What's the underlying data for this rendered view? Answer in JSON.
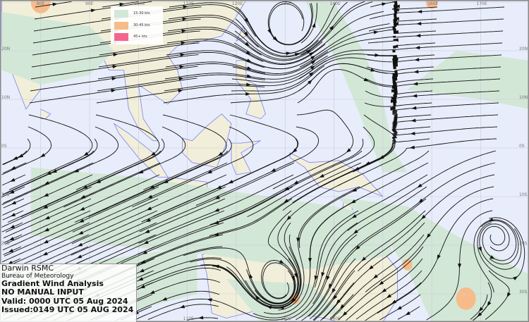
{
  "title_box": {
    "centre": "Darwin RSMC",
    "agency": "Bureau of Meteorology",
    "product": "Gradient Wind Analysis",
    "note": "NO MANUAL INPUT",
    "valid": "Valid:   0000 UTC 05 Aug 2024",
    "issued": "Issued:0149 UTC 05 AUG 2024"
  },
  "legend": [
    {
      "label": "15-30 kts",
      "color": "#d3e7d7"
    },
    {
      "label": "30-45 kts",
      "color": "#f7bb8a"
    },
    {
      "label": "45+ kts",
      "color": "#f4648f"
    }
  ],
  "longitude_labels_top": [
    "80E",
    "90E",
    "100E",
    "110E",
    "120E",
    "130E",
    "140E",
    "160E",
    "170E"
  ],
  "longitude_labels_bottom": [
    "110E",
    "130E",
    "140E"
  ],
  "latitude_labels_left": [
    "20N",
    "10N",
    "0S",
    "10S",
    "20S"
  ],
  "latitude_labels_right": [
    "20N",
    "10N",
    "0S",
    "10S",
    "20S",
    "30S"
  ],
  "colors": {
    "ocean": "#e8edfb",
    "land": "#f1efd9",
    "coastline": "#7f7ff7",
    "streamline": "#111111"
  }
}
